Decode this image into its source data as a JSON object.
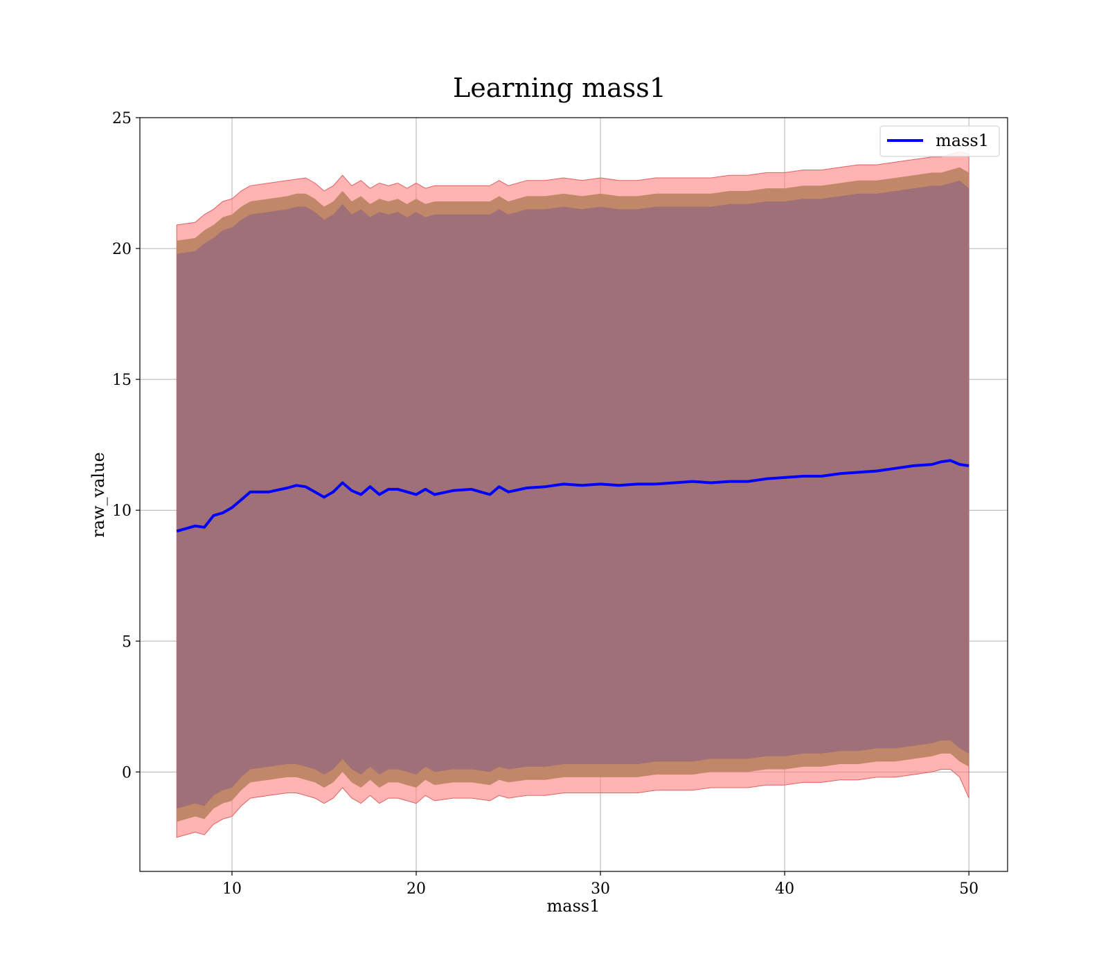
{
  "chart_data": {
    "type": "line",
    "title": "Learning mass1",
    "xlabel": "mass1",
    "ylabel": "raw_value",
    "xlim": [
      5,
      52.1
    ],
    "ylim": [
      -3.8,
      25
    ],
    "xticks": [
      10,
      20,
      30,
      40,
      50
    ],
    "yticks": [
      0,
      5,
      10,
      15,
      20,
      25
    ],
    "grid": true,
    "legend": {
      "position": "top-right",
      "entries": [
        "mass1"
      ]
    },
    "colors": {
      "line": "#0000ff",
      "band_outer": "#ff8080",
      "band_middle": "#c08868",
      "band_inner": "#a07078",
      "grid": "#b0b0b0"
    },
    "series": [
      {
        "name": "mass1",
        "x": [
          7.0,
          8.0,
          8.5,
          9.0,
          9.5,
          10.0,
          10.5,
          11.0,
          12.0,
          13.0,
          13.5,
          14.0,
          14.5,
          15.0,
          15.5,
          16.0,
          16.5,
          17.0,
          17.5,
          18.0,
          18.5,
          19.0,
          19.5,
          20.0,
          20.5,
          21.0,
          22.0,
          23.0,
          24.0,
          24.5,
          25.0,
          26.0,
          27.0,
          28.0,
          29.0,
          30.0,
          31.0,
          32.0,
          33.0,
          34.0,
          35.0,
          36.0,
          37.0,
          38.0,
          39.0,
          40.0,
          41.0,
          42.0,
          43.0,
          44.0,
          45.0,
          46.0,
          47.0,
          48.0,
          48.5,
          49.0,
          49.5,
          50.0
        ],
        "y": [
          9.2,
          9.4,
          9.35,
          9.8,
          9.9,
          10.1,
          10.4,
          10.7,
          10.7,
          10.85,
          10.95,
          10.9,
          10.7,
          10.5,
          10.7,
          11.05,
          10.75,
          10.6,
          10.9,
          10.6,
          10.8,
          10.8,
          10.7,
          10.6,
          10.8,
          10.6,
          10.75,
          10.8,
          10.6,
          10.9,
          10.7,
          10.85,
          10.9,
          11.0,
          10.95,
          11.0,
          10.95,
          11.0,
          11.0,
          11.05,
          11.1,
          11.05,
          11.1,
          11.1,
          11.2,
          11.25,
          11.3,
          11.3,
          11.4,
          11.45,
          11.5,
          11.6,
          11.7,
          11.75,
          11.85,
          11.9,
          11.75,
          11.7
        ],
        "band_outer_upper": [
          20.9,
          21.0,
          21.3,
          21.5,
          21.8,
          21.9,
          22.2,
          22.4,
          22.5,
          22.6,
          22.65,
          22.7,
          22.5,
          22.2,
          22.4,
          22.8,
          22.4,
          22.6,
          22.3,
          22.5,
          22.4,
          22.5,
          22.3,
          22.5,
          22.3,
          22.4,
          22.4,
          22.4,
          22.4,
          22.6,
          22.4,
          22.6,
          22.6,
          22.7,
          22.6,
          22.7,
          22.6,
          22.6,
          22.7,
          22.7,
          22.7,
          22.7,
          22.8,
          22.8,
          22.9,
          22.9,
          23.0,
          23.0,
          23.1,
          23.2,
          23.2,
          23.3,
          23.4,
          23.5,
          23.5,
          23.6,
          23.7,
          23.6
        ],
        "band_outer_lower": [
          -2.5,
          -2.3,
          -2.4,
          -2.0,
          -1.8,
          -1.7,
          -1.3,
          -1.0,
          -0.9,
          -0.8,
          -0.8,
          -0.9,
          -1.0,
          -1.2,
          -1.0,
          -0.6,
          -1.0,
          -1.2,
          -0.9,
          -1.2,
          -1.0,
          -1.0,
          -1.1,
          -1.2,
          -0.9,
          -1.1,
          -1.0,
          -1.0,
          -1.1,
          -0.9,
          -1.0,
          -0.9,
          -0.9,
          -0.8,
          -0.8,
          -0.8,
          -0.8,
          -0.8,
          -0.7,
          -0.7,
          -0.7,
          -0.6,
          -0.6,
          -0.6,
          -0.5,
          -0.5,
          -0.4,
          -0.4,
          -0.3,
          -0.3,
          -0.2,
          -0.2,
          -0.1,
          0.0,
          0.1,
          0.1,
          -0.2,
          -1.0
        ],
        "band_middle_upper": [
          20.3,
          20.4,
          20.7,
          20.9,
          21.2,
          21.3,
          21.6,
          21.8,
          21.9,
          22.0,
          22.1,
          22.1,
          21.9,
          21.6,
          21.8,
          22.2,
          21.8,
          22.0,
          21.7,
          21.9,
          21.8,
          21.9,
          21.7,
          21.9,
          21.7,
          21.8,
          21.8,
          21.8,
          21.8,
          22.0,
          21.8,
          22.0,
          22.0,
          22.1,
          22.0,
          22.1,
          22.0,
          22.0,
          22.1,
          22.1,
          22.1,
          22.1,
          22.2,
          22.2,
          22.3,
          22.3,
          22.4,
          22.4,
          22.5,
          22.6,
          22.6,
          22.7,
          22.8,
          22.9,
          22.9,
          23.0,
          23.1,
          22.9
        ],
        "band_middle_lower": [
          -1.9,
          -1.7,
          -1.8,
          -1.4,
          -1.2,
          -1.1,
          -0.7,
          -0.4,
          -0.3,
          -0.2,
          -0.2,
          -0.3,
          -0.4,
          -0.6,
          -0.4,
          0.0,
          -0.4,
          -0.6,
          -0.3,
          -0.6,
          -0.4,
          -0.4,
          -0.5,
          -0.6,
          -0.3,
          -0.5,
          -0.4,
          -0.4,
          -0.5,
          -0.3,
          -0.4,
          -0.3,
          -0.3,
          -0.2,
          -0.2,
          -0.2,
          -0.2,
          -0.2,
          -0.1,
          -0.1,
          -0.1,
          0.0,
          0.0,
          0.0,
          0.1,
          0.1,
          0.2,
          0.2,
          0.3,
          0.3,
          0.4,
          0.4,
          0.5,
          0.6,
          0.7,
          0.7,
          0.4,
          0.2
        ],
        "band_inner_upper": [
          19.8,
          19.9,
          20.2,
          20.4,
          20.7,
          20.8,
          21.1,
          21.3,
          21.4,
          21.5,
          21.6,
          21.6,
          21.4,
          21.1,
          21.3,
          21.7,
          21.3,
          21.5,
          21.2,
          21.4,
          21.3,
          21.4,
          21.2,
          21.4,
          21.2,
          21.3,
          21.3,
          21.3,
          21.3,
          21.5,
          21.3,
          21.5,
          21.5,
          21.6,
          21.5,
          21.6,
          21.5,
          21.5,
          21.6,
          21.6,
          21.6,
          21.6,
          21.7,
          21.7,
          21.8,
          21.8,
          21.9,
          21.9,
          22.0,
          22.1,
          22.1,
          22.2,
          22.3,
          22.4,
          22.4,
          22.5,
          22.6,
          22.3
        ],
        "band_inner_lower": [
          -1.4,
          -1.2,
          -1.3,
          -0.9,
          -0.7,
          -0.6,
          -0.2,
          0.1,
          0.2,
          0.3,
          0.3,
          0.2,
          0.1,
          -0.1,
          0.1,
          0.5,
          0.1,
          -0.1,
          0.2,
          -0.1,
          0.1,
          0.1,
          0.0,
          -0.1,
          0.2,
          0.0,
          0.1,
          0.1,
          0.0,
          0.2,
          0.1,
          0.2,
          0.2,
          0.3,
          0.3,
          0.3,
          0.3,
          0.3,
          0.4,
          0.4,
          0.4,
          0.5,
          0.5,
          0.5,
          0.6,
          0.6,
          0.7,
          0.7,
          0.8,
          0.8,
          0.9,
          0.9,
          1.0,
          1.1,
          1.2,
          1.2,
          0.9,
          0.7
        ]
      }
    ]
  }
}
